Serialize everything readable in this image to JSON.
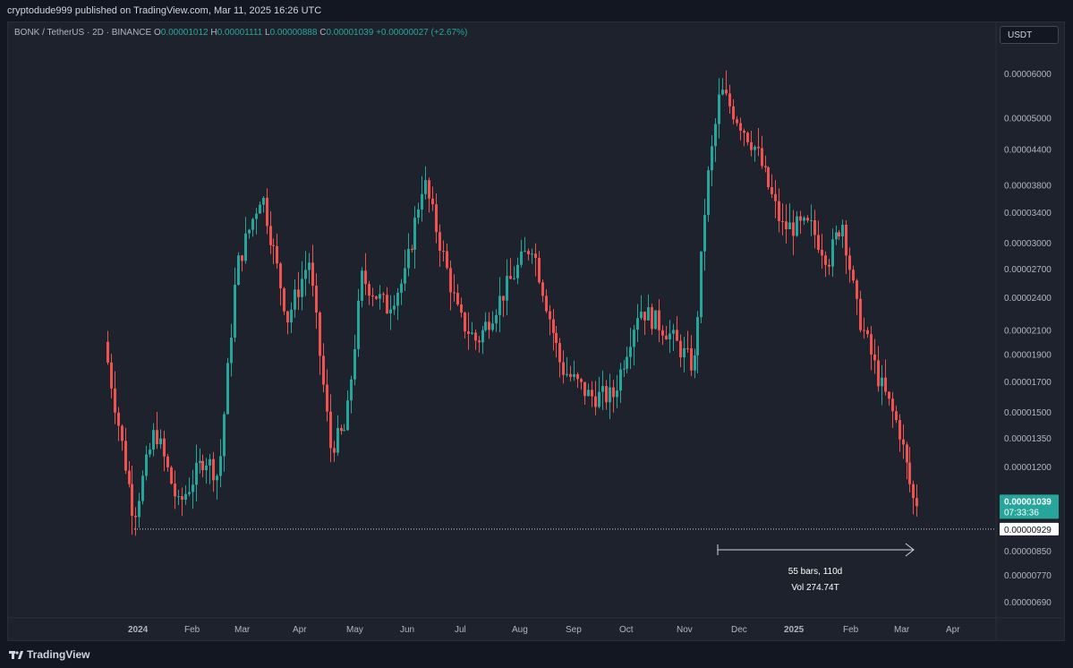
{
  "header": {
    "published_by": "cryptodude999 published on TradingView.com, Mar 11, 2025 16:26 UTC"
  },
  "legend": {
    "symbol": "BONK / TetherUS · 2D · BINANCE",
    "open_label": "O",
    "open": "0.00001012",
    "high_label": "H",
    "high": "0.00001111",
    "low_label": "L",
    "low": "0.00000888",
    "close_label": "C",
    "close": "0.00001039",
    "change": "+0.00000027 (+2.67%)"
  },
  "currency": "USDT",
  "footer": {
    "brand": "TradingView"
  },
  "colors": {
    "up": "#26a69a",
    "down": "#ef5350",
    "background": "#1e222d",
    "text": "#b2b5be"
  },
  "chart_data": {
    "type": "candlestick",
    "title": "",
    "y_scale": "log",
    "ylim": [
      6.4e-06,
      6.9e-06
    ],
    "y_ticks": [
      {
        "label": "0.00006000",
        "value": 6e-05
      },
      {
        "label": "0.00005000",
        "value": 5e-05
      },
      {
        "label": "0.00004400",
        "value": 4.4e-05
      },
      {
        "label": "0.00003800",
        "value": 3.8e-05
      },
      {
        "label": "0.00003400",
        "value": 3.4e-05
      },
      {
        "label": "0.00003000",
        "value": 3e-05
      },
      {
        "label": "0.00002700",
        "value": 2.7e-05
      },
      {
        "label": "0.00002400",
        "value": 2.4e-05
      },
      {
        "label": "0.00002100",
        "value": 2.1e-05
      },
      {
        "label": "0.00001900",
        "value": 1.9e-05
      },
      {
        "label": "0.00001700",
        "value": 1.7e-05
      },
      {
        "label": "0.00001500",
        "value": 1.5e-05
      },
      {
        "label": "0.00001350",
        "value": 1.35e-05
      },
      {
        "label": "0.00001200",
        "value": 1.2e-05
      },
      {
        "label": "0.00000850",
        "value": 8.5e-06
      },
      {
        "label": "0.00000770",
        "value": 7.7e-06
      },
      {
        "label": "0.00000690",
        "value": 6.9e-06
      }
    ],
    "x_ticks": [
      "2024",
      "Feb",
      "Mar",
      "Apr",
      "May",
      "Jun",
      "Jul",
      "Aug",
      "Sep",
      "Oct",
      "Nov",
      "Dec",
      "2025",
      "Feb",
      "Mar",
      "Apr"
    ],
    "price_path": [
      {
        "date": "2023-12-07",
        "price": 2e-05
      },
      {
        "date": "2023-12-24",
        "price": 9.8e-06
      },
      {
        "date": "2024-01-05",
        "price": 1.4e-05
      },
      {
        "date": "2024-01-18",
        "price": 1.02e-05
      },
      {
        "date": "2024-02-02",
        "price": 1.25e-05
      },
      {
        "date": "2024-02-10",
        "price": 1.15e-05
      },
      {
        "date": "2024-02-20",
        "price": 2.7e-05
      },
      {
        "date": "2024-03-05",
        "price": 3.7e-05
      },
      {
        "date": "2024-03-20",
        "price": 2.2e-05
      },
      {
        "date": "2024-04-01",
        "price": 2.8e-05
      },
      {
        "date": "2024-04-13",
        "price": 1.3e-05
      },
      {
        "date": "2024-04-22",
        "price": 1.4e-05
      },
      {
        "date": "2024-05-01",
        "price": 2.6e-05
      },
      {
        "date": "2024-05-15",
        "price": 2.3e-05
      },
      {
        "date": "2024-05-25",
        "price": 2.6e-05
      },
      {
        "date": "2024-06-05",
        "price": 3.9e-05
      },
      {
        "date": "2024-06-25",
        "price": 2.2e-05
      },
      {
        "date": "2024-07-05",
        "price": 2e-05
      },
      {
        "date": "2024-07-25",
        "price": 2.6e-05
      },
      {
        "date": "2024-08-05",
        "price": 3e-05
      },
      {
        "date": "2024-08-22",
        "price": 1.8e-05
      },
      {
        "date": "2024-09-07",
        "price": 1.6e-05
      },
      {
        "date": "2024-09-20",
        "price": 1.6e-05
      },
      {
        "date": "2024-10-05",
        "price": 2.3e-05
      },
      {
        "date": "2024-10-20",
        "price": 2.1e-05
      },
      {
        "date": "2024-11-05",
        "price": 1.8e-05
      },
      {
        "date": "2024-11-12",
        "price": 3.7e-05
      },
      {
        "date": "2024-11-20",
        "price": 5.6e-05
      },
      {
        "date": "2024-12-10",
        "price": 4.4e-05
      },
      {
        "date": "2024-12-25",
        "price": 3.2e-05
      },
      {
        "date": "2025-01-10",
        "price": 3.2e-05
      },
      {
        "date": "2025-01-20",
        "price": 2.8e-05
      },
      {
        "date": "2025-01-28",
        "price": 3.3e-05
      },
      {
        "date": "2025-02-05",
        "price": 2.3e-05
      },
      {
        "date": "2025-02-18",
        "price": 1.7e-05
      },
      {
        "date": "2025-03-01",
        "price": 1.4e-05
      },
      {
        "date": "2025-03-09",
        "price": 1.05e-05
      },
      {
        "date": "2025-03-11",
        "price": 1.04e-05
      }
    ],
    "horizontal_line": {
      "value": 9.29e-06,
      "label": "0.00000929"
    },
    "current_price": {
      "value": 1.039e-05,
      "label": "0.00001039",
      "countdown": "07:33:36"
    },
    "measure": {
      "bars": "55 bars, 110d",
      "volume": "Vol 274.74T"
    }
  }
}
